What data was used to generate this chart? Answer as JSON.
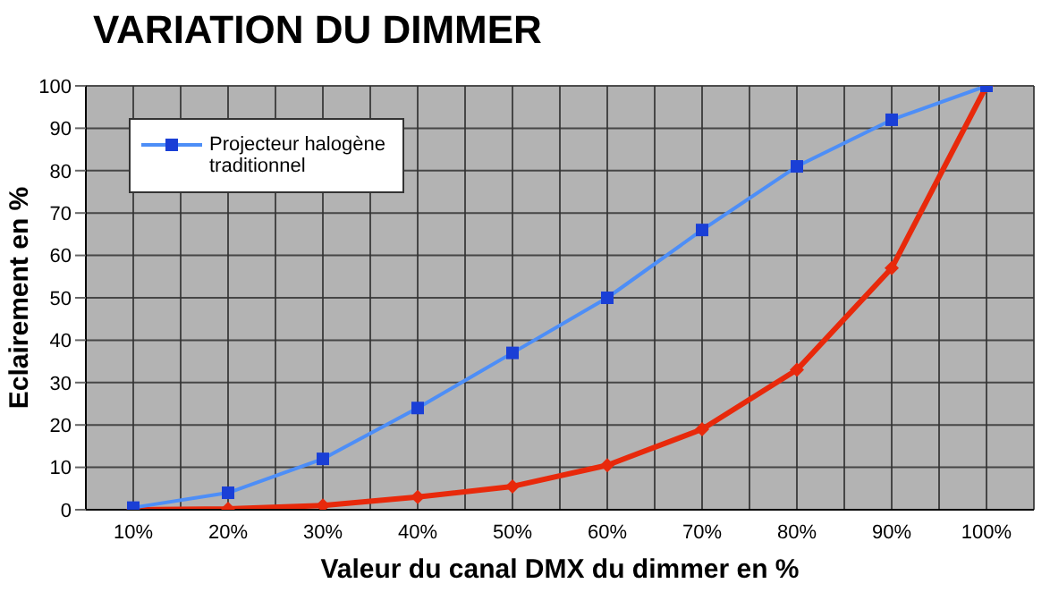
{
  "chart_data": {
    "type": "line",
    "title": "VARIATION DU DIMMER",
    "xlabel": "Valeur du canal DMX du dimmer en %",
    "ylabel": "Eclairement en %",
    "categories": [
      "10%",
      "20%",
      "30%",
      "40%",
      "50%",
      "60%",
      "70%",
      "80%",
      "90%",
      "100%"
    ],
    "series": [
      {
        "color": "#e8290b",
        "marker": "diamond",
        "values": [
          0,
          0.2,
          1,
          3,
          5.5,
          10.5,
          19,
          33,
          57,
          100
        ]
      },
      {
        "name": "Projecteur halogène traditionnel",
        "color": "#4d8ef7",
        "marker": "square",
        "values": [
          0.5,
          4,
          12,
          24,
          37,
          50,
          66,
          81,
          92,
          100
        ]
      }
    ],
    "ylim": [
      0,
      100
    ],
    "yticks": [
      0,
      10,
      20,
      30,
      40,
      50,
      60,
      70,
      80,
      90,
      100
    ],
    "grid": true,
    "legend": "top left"
  }
}
